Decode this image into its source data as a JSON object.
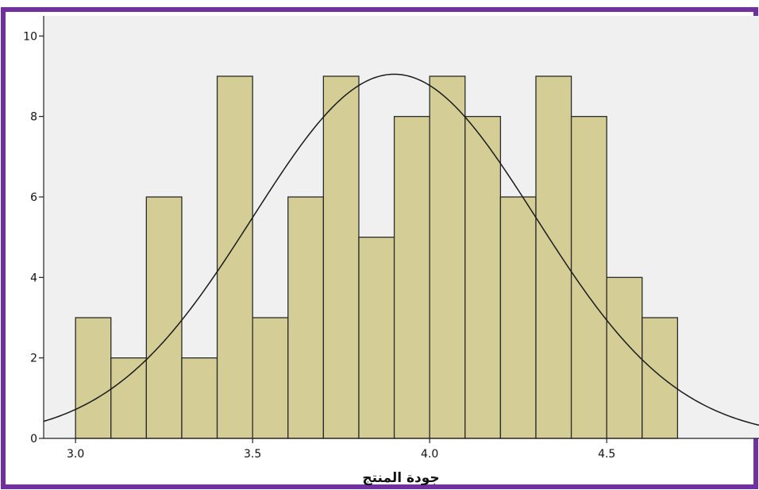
{
  "colors": {
    "border": "#7030A0",
    "plot_background": "#F0F0F0",
    "bar_fill": "#D4CE96",
    "bar_stroke": "#2b2b2b",
    "curve": "#1a1a1a"
  },
  "chart_data": {
    "type": "bar",
    "subtype": "histogram with normal curve",
    "title": "",
    "xlabel": "جودة المنتج",
    "ylabel": "",
    "bin_width": 0.1,
    "bins": [
      {
        "start": 3.0,
        "end": 3.1,
        "count": 3
      },
      {
        "start": 3.1,
        "end": 3.2,
        "count": 2
      },
      {
        "start": 3.2,
        "end": 3.3,
        "count": 6
      },
      {
        "start": 3.3,
        "end": 3.4,
        "count": 2
      },
      {
        "start": 3.4,
        "end": 3.5,
        "count": 9
      },
      {
        "start": 3.5,
        "end": 3.6,
        "count": 3
      },
      {
        "start": 3.6,
        "end": 3.7,
        "count": 6
      },
      {
        "start": 3.7,
        "end": 3.8,
        "count": 9
      },
      {
        "start": 3.8,
        "end": 3.9,
        "count": 5
      },
      {
        "start": 3.9,
        "end": 4.0,
        "count": 8
      },
      {
        "start": 4.0,
        "end": 4.1,
        "count": 9
      },
      {
        "start": 4.1,
        "end": 4.2,
        "count": 8
      },
      {
        "start": 4.2,
        "end": 4.3,
        "count": 6
      },
      {
        "start": 4.3,
        "end": 4.4,
        "count": 9
      },
      {
        "start": 4.4,
        "end": 4.5,
        "count": 8
      },
      {
        "start": 4.5,
        "end": 4.6,
        "count": 4
      },
      {
        "start": 4.6,
        "end": 4.7,
        "count": 3
      }
    ],
    "normal_curve": {
      "mean": 3.9,
      "std": 0.4,
      "peak": 9.05
    },
    "xlim": [
      2.91,
      4.93
    ],
    "ylim": [
      0,
      10.5
    ],
    "x_ticks": [
      3.0,
      3.5,
      4.0,
      4.5
    ],
    "x_tick_labels": [
      "3.0",
      "3.5",
      "4.0",
      "4.5"
    ],
    "y_ticks": [
      0,
      2,
      4,
      6,
      8,
      10
    ],
    "y_tick_labels": [
      "0",
      "2",
      "4",
      "6",
      "8",
      "10"
    ],
    "grid": false,
    "legend": "none"
  }
}
